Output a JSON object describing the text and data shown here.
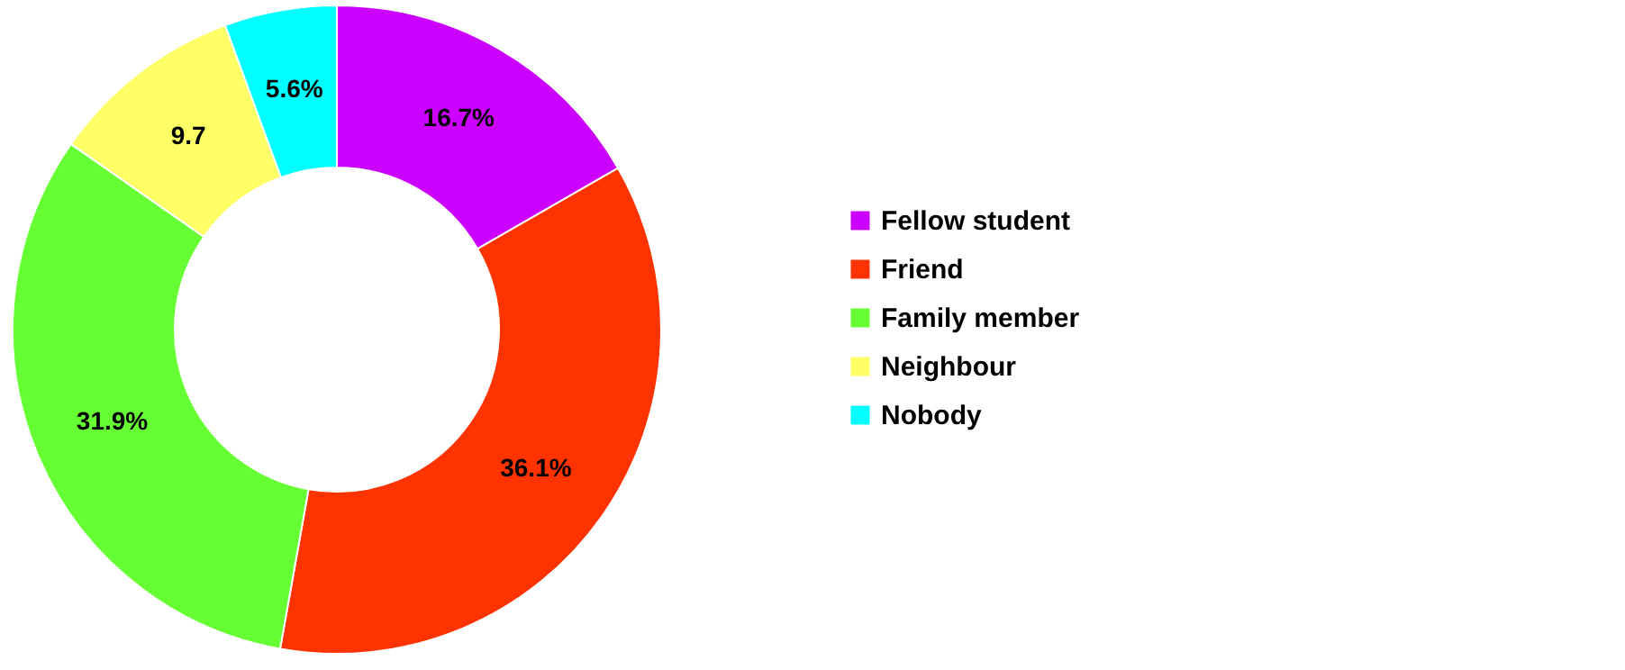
{
  "chart_data": {
    "type": "donut",
    "categories": [
      "Fellow student",
      "Friend",
      "Family member",
      "Neighbour",
      "Nobody"
    ],
    "values": [
      16.7,
      36.1,
      31.9,
      9.7,
      5.6
    ],
    "colors": [
      "#cc00ff",
      "#ff3300",
      "#66ff33",
      "#ffff66",
      "#00ffff"
    ],
    "value_labels": [
      "16.7%",
      "36.1%",
      "31.9%",
      "9.7",
      "5.6%"
    ],
    "legend": "right"
  }
}
